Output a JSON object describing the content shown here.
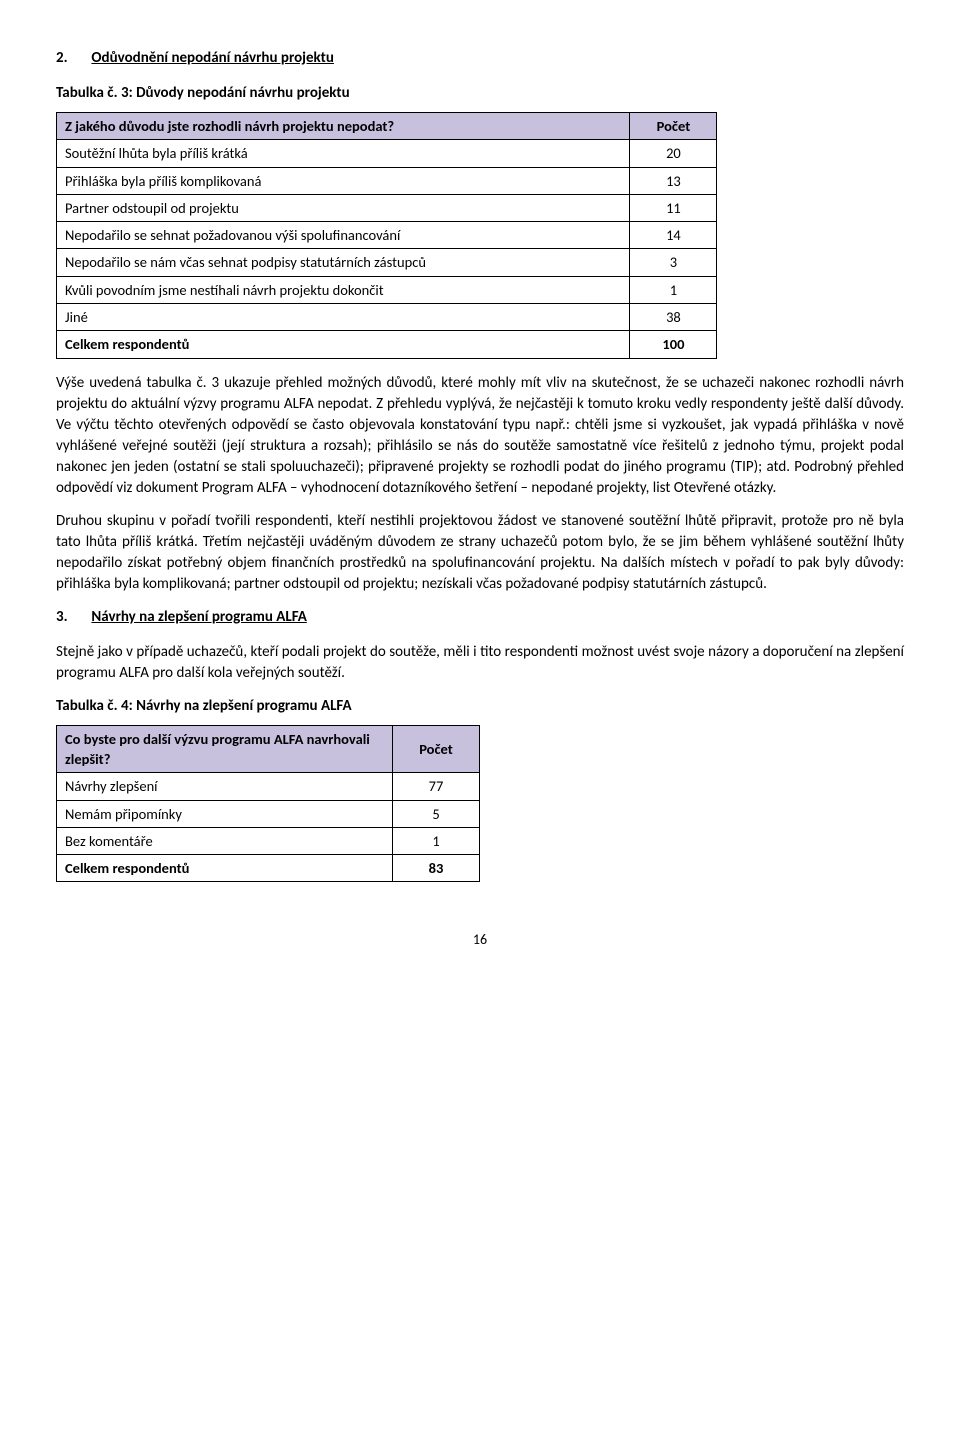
{
  "section2": {
    "number": "2.",
    "title": "Odůvodnění nepodání návrhu projektu",
    "table_caption": "Tabulka č. 3: Důvody nepodání návrhu projektu",
    "table": {
      "header_q": "Z jakého důvodu jste rozhodli návrh projektu nepodat?",
      "header_count": "Počet",
      "rows": [
        {
          "label": "Soutěžní lhůta byla příliš krátká",
          "value": "20"
        },
        {
          "label": "Přihláška byla příliš komplikovaná",
          "value": "13"
        },
        {
          "label": "Partner odstoupil od projektu",
          "value": "11"
        },
        {
          "label": "Nepodařilo se sehnat požadovanou výši spolufinancování",
          "value": "14"
        },
        {
          "label": "Nepodařilo se nám včas sehnat podpisy statutárních zástupců",
          "value": "3"
        },
        {
          "label": "Kvůli povodním jsme nestíhali návrh projektu dokončit",
          "value": "1"
        },
        {
          "label": "Jiné",
          "value": "38"
        }
      ],
      "total_label": "Celkem respondentů",
      "total_value": "100"
    },
    "para1": "Výše uvedená tabulka č. 3 ukazuje přehled možných důvodů, které mohly mít vliv na skutečnost, že se uchazeči nakonec rozhodli návrh projektu do aktuální výzvy programu ALFA nepodat. Z přehledu vyplývá, že nejčastěji k tomuto kroku vedly respondenty ještě další důvody. Ve výčtu těchto otevřených odpovědí se často objevovala konstatování typu např.: chtěli jsme si vyzkoušet, jak vypadá přihláška v nově vyhlášené veřejné soutěži (její struktura a rozsah); přihlásilo se nás do soutěže samostatně více řešitelů z jednoho týmu, projekt podal nakonec jen jeden (ostatní se stali spoluuchazeči); připravené projekty se rozhodli podat do jiného programu (TIP); atd. Podrobný přehled odpovědí viz dokument Program ALFA – vyhodnocení dotazníkového šetření – nepodané projekty, list Otevřené otázky.",
    "para2": "Druhou skupinu v pořadí tvořili respondenti, kteří nestihli projektovou žádost ve stanovené soutěžní lhůtě připravit, protože pro ně byla tato lhůta příliš krátká. Třetím nejčastěji uváděným důvodem ze strany uchazečů potom bylo, že se jim během vyhlášené soutěžní lhůty nepodařilo získat potřebný objem finančních prostředků na spolufinancování projektu. Na dalších místech v pořadí to pak byly důvody: přihláška byla komplikovaná; partner odstoupil od projektu; nezískali včas požadované podpisy statutárních zástupců."
  },
  "section3": {
    "number": "3.",
    "title": "Návrhy na zlepšení programu ALFA",
    "intro": "Stejně jako v případě uchazečů, kteří podali projekt do soutěže, měli i tito respondenti možnost uvést svoje názory a doporučení na zlepšení programu ALFA pro další kola veřejných soutěží.",
    "table_caption": "Tabulka č. 4: Návrhy na zlepšení programu ALFA",
    "table": {
      "header_q": "Co byste pro další výzvu programu ALFA navrhovali zlepšit?",
      "header_count": "Počet",
      "rows": [
        {
          "label": "Návrhy zlepšení",
          "value": "77"
        },
        {
          "label": "Nemám připomínky",
          "value": "5"
        },
        {
          "label": "Bez komentáře",
          "value": "1"
        }
      ],
      "total_label": "Celkem respondentů",
      "total_value": "83"
    }
  },
  "page_number": "16"
}
